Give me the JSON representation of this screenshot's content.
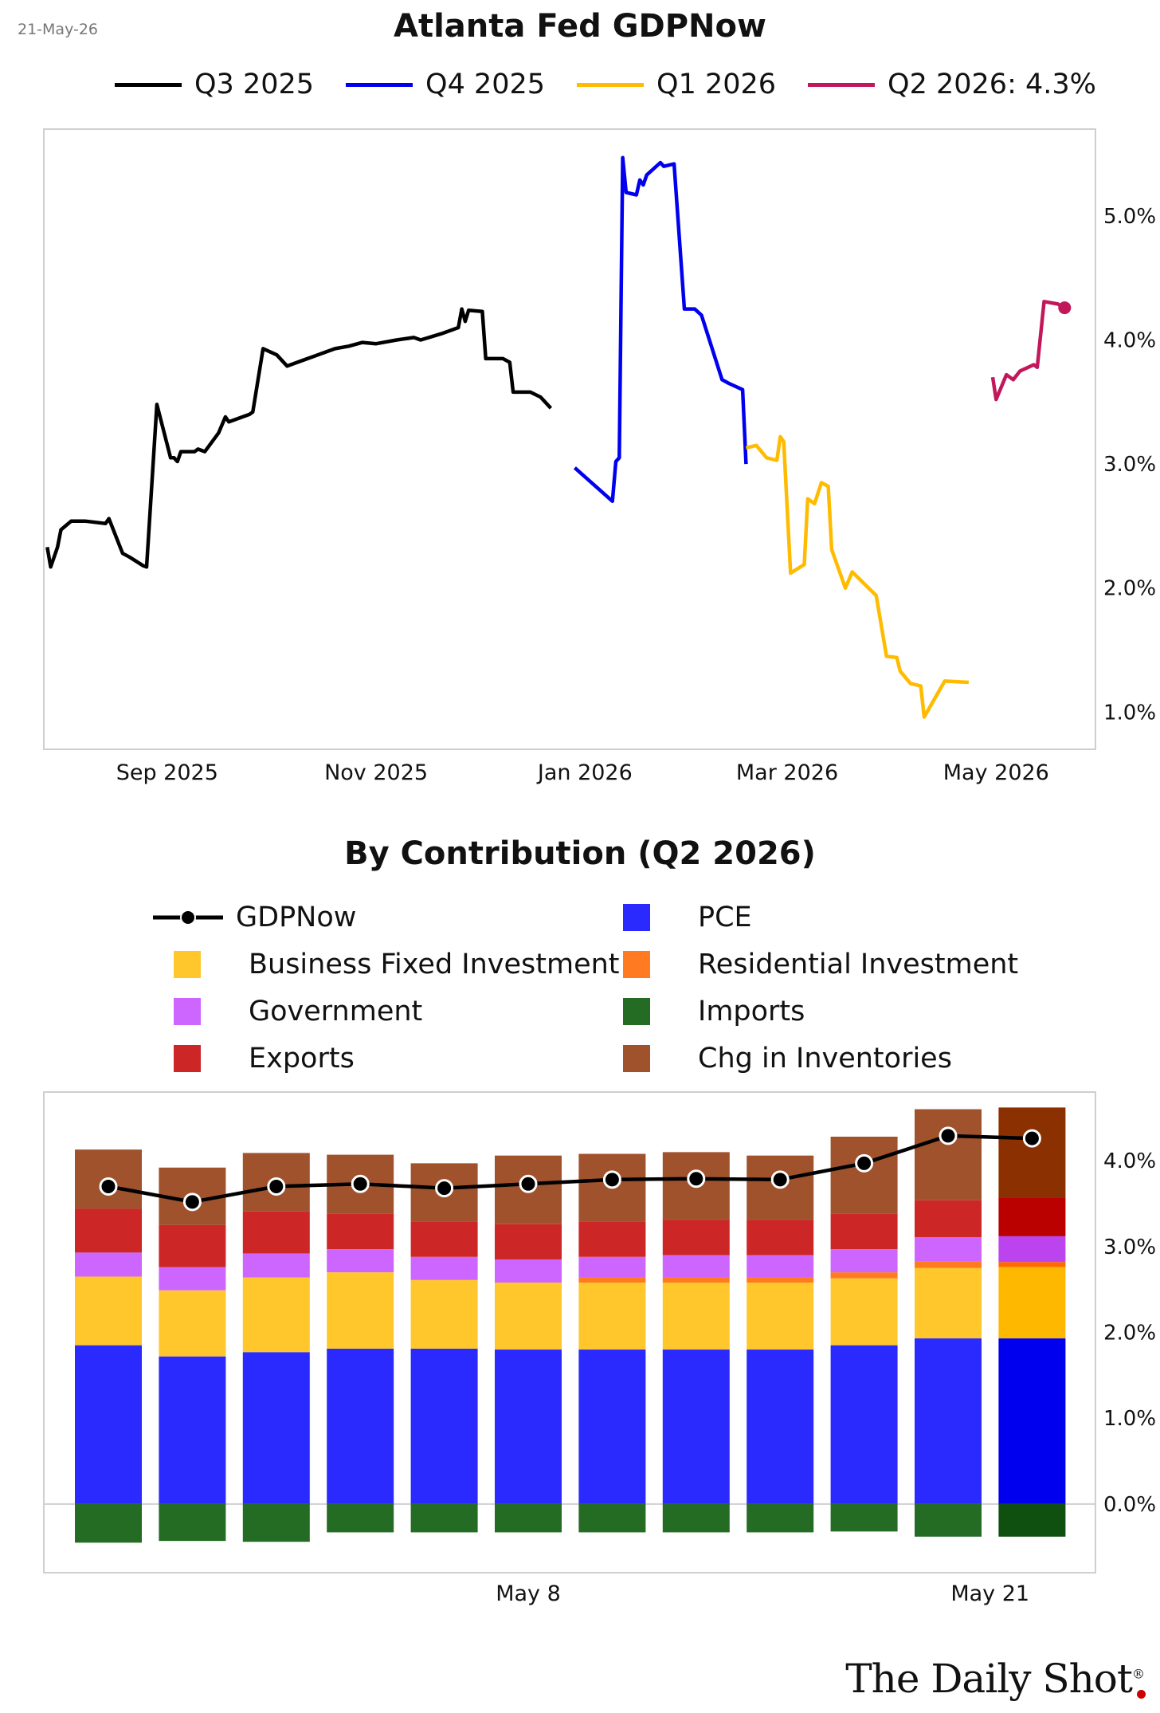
{
  "date_stamp": "21-May-26",
  "chart_data": [
    {
      "type": "line",
      "title": "Atlanta Fed GDPNow",
      "y_axis_side": "right",
      "ylim": [
        0.7,
        5.7
      ],
      "yticks": [
        1.0,
        2.0,
        3.0,
        4.0,
        5.0
      ],
      "ytick_labels": [
        "1.0%",
        "2.0%",
        "3.0%",
        "4.0%",
        "5.0%"
      ],
      "xlim": [
        "2025-07-27",
        "2026-05-30"
      ],
      "xticks": [
        "2025-09-01",
        "2025-11-01",
        "2026-01-01",
        "2026-03-01",
        "2026-05-01"
      ],
      "xtick_labels": [
        "Sep 2025",
        "Nov 2025",
        "Jan 2026",
        "Mar 2026",
        "May 2026"
      ],
      "legend_placement": "top",
      "grid": false,
      "series": [
        {
          "name": "Q3 2025",
          "color": "#000000",
          "points": [
            [
              "2025-07-28",
              2.33
            ],
            [
              "2025-07-29",
              2.17
            ],
            [
              "2025-07-31",
              2.33
            ],
            [
              "2025-08-01",
              2.47
            ],
            [
              "2025-08-04",
              2.54
            ],
            [
              "2025-08-08",
              2.54
            ],
            [
              "2025-08-14",
              2.52
            ],
            [
              "2025-08-15",
              2.56
            ],
            [
              "2025-08-19",
              2.28
            ],
            [
              "2025-08-21",
              2.25
            ],
            [
              "2025-08-25",
              2.18
            ],
            [
              "2025-08-26",
              2.17
            ],
            [
              "2025-08-29",
              3.48
            ],
            [
              "2025-09-02",
              3.05
            ],
            [
              "2025-09-03",
              3.05
            ],
            [
              "2025-09-04",
              3.02
            ],
            [
              "2025-09-05",
              3.1
            ],
            [
              "2025-09-09",
              3.1
            ],
            [
              "2025-09-10",
              3.12
            ],
            [
              "2025-09-12",
              3.1
            ],
            [
              "2025-09-16",
              3.25
            ],
            [
              "2025-09-18",
              3.38
            ],
            [
              "2025-09-19",
              3.34
            ],
            [
              "2025-09-25",
              3.4
            ],
            [
              "2025-09-26",
              3.42
            ],
            [
              "2025-09-29",
              3.93
            ],
            [
              "2025-10-03",
              3.88
            ],
            [
              "2025-10-06",
              3.79
            ],
            [
              "2025-10-14",
              3.87
            ],
            [
              "2025-10-20",
              3.93
            ],
            [
              "2025-10-24",
              3.95
            ],
            [
              "2025-10-28",
              3.98
            ],
            [
              "2025-11-01",
              3.97
            ],
            [
              "2025-11-07",
              4.0
            ],
            [
              "2025-11-12",
              4.02
            ],
            [
              "2025-11-14",
              4.0
            ],
            [
              "2025-11-20",
              4.05
            ],
            [
              "2025-11-25",
              4.1
            ],
            [
              "2025-11-26",
              4.25
            ],
            [
              "2025-11-27",
              4.15
            ],
            [
              "2025-11-28",
              4.24
            ],
            [
              "2025-12-02",
              4.23
            ],
            [
              "2025-12-03",
              3.85
            ],
            [
              "2025-12-08",
              3.85
            ],
            [
              "2025-12-10",
              3.82
            ],
            [
              "2025-12-11",
              3.58
            ],
            [
              "2025-12-16",
              3.58
            ],
            [
              "2025-12-19",
              3.54
            ],
            [
              "2025-12-22",
              3.45
            ]
          ]
        },
        {
          "name": "Q4 2025",
          "color": "#0000ee",
          "points": [
            [
              "2025-12-29",
              2.97
            ],
            [
              "2026-01-09",
              2.7
            ],
            [
              "2026-01-10",
              3.02
            ],
            [
              "2026-01-11",
              3.05
            ],
            [
              "2026-01-12",
              5.47
            ],
            [
              "2026-01-13",
              5.19
            ],
            [
              "2026-01-16",
              5.17
            ],
            [
              "2026-01-17",
              5.29
            ],
            [
              "2026-01-18",
              5.25
            ],
            [
              "2026-01-19",
              5.33
            ],
            [
              "2026-01-23",
              5.43
            ],
            [
              "2026-01-24",
              5.4
            ],
            [
              "2026-01-27",
              5.42
            ],
            [
              "2026-01-30",
              4.25
            ],
            [
              "2026-02-02",
              4.25
            ],
            [
              "2026-02-04",
              4.2
            ],
            [
              "2026-02-10",
              3.68
            ],
            [
              "2026-02-12",
              3.65
            ],
            [
              "2026-02-16",
              3.6
            ],
            [
              "2026-02-17",
              3.0
            ]
          ]
        },
        {
          "name": "Q1 2026",
          "color": "#ffbb00",
          "points": [
            [
              "2026-02-17",
              3.13
            ],
            [
              "2026-02-20",
              3.15
            ],
            [
              "2026-02-23",
              3.05
            ],
            [
              "2026-02-26",
              3.03
            ],
            [
              "2026-02-27",
              3.22
            ],
            [
              "2026-02-28",
              3.18
            ],
            [
              "2026-03-02",
              2.12
            ],
            [
              "2026-03-06",
              2.19
            ],
            [
              "2026-03-07",
              2.72
            ],
            [
              "2026-03-09",
              2.68
            ],
            [
              "2026-03-11",
              2.85
            ],
            [
              "2026-03-13",
              2.82
            ],
            [
              "2026-03-14",
              2.31
            ],
            [
              "2026-03-18",
              2.0
            ],
            [
              "2026-03-20",
              2.13
            ],
            [
              "2026-03-27",
              1.94
            ],
            [
              "2026-03-30",
              1.45
            ],
            [
              "2026-04-02",
              1.44
            ],
            [
              "2026-04-03",
              1.33
            ],
            [
              "2026-04-06",
              1.23
            ],
            [
              "2026-04-09",
              1.21
            ],
            [
              "2026-04-10",
              0.96
            ],
            [
              "2026-04-16",
              1.25
            ],
            [
              "2026-04-23",
              1.24
            ]
          ]
        },
        {
          "name": "Q2 2026",
          "label_value": "4.3%",
          "color": "#c2185b",
          "points": [
            [
              "2026-04-30",
              3.7
            ],
            [
              "2026-05-01",
              3.52
            ],
            [
              "2026-05-04",
              3.72
            ],
            [
              "2026-05-06",
              3.68
            ],
            [
              "2026-05-08",
              3.75
            ],
            [
              "2026-05-12",
              3.8
            ],
            [
              "2026-05-13",
              3.78
            ],
            [
              "2026-05-15",
              4.31
            ],
            [
              "2026-05-19",
              4.29
            ],
            [
              "2026-05-21",
              4.26
            ]
          ]
        }
      ]
    },
    {
      "type": "bar",
      "stacked": true,
      "title": "By Contribution (Q2 2026)",
      "y_axis_side": "right",
      "ylim": [
        -0.8,
        4.8
      ],
      "yticks": [
        0,
        1,
        2,
        3,
        4
      ],
      "ytick_labels": [
        "0.0%",
        "1.0%",
        "2.0%",
        "3.0%",
        "4.0%"
      ],
      "xtick_labels": [
        {
          "index": 5.5,
          "label": "May 8"
        },
        {
          "index": 11,
          "label": "May 21"
        }
      ],
      "grid": false,
      "legend_placement": "top",
      "legend_order": [
        "GDPNow",
        "PCE",
        "Business Fixed Investment",
        "Residential Investment",
        "Government",
        "Imports",
        "Exports",
        "Chg in Inventories"
      ],
      "n_bars": 12,
      "series": [
        {
          "name": "PCE",
          "color": "#2a2aff",
          "values": [
            1.85,
            1.72,
            1.77,
            1.81,
            1.81,
            1.8,
            1.8,
            1.8,
            1.8,
            1.85,
            1.93,
            1.93
          ]
        },
        {
          "name": "Business Fixed Investment",
          "color": "#ffc72c",
          "values": [
            0.8,
            0.77,
            0.87,
            0.89,
            0.8,
            0.78,
            0.78,
            0.78,
            0.78,
            0.78,
            0.82,
            0.83
          ]
        },
        {
          "name": "Residential Investment",
          "color": "#ff7a21",
          "values": [
            0.0,
            0.0,
            0.0,
            0.0,
            0.0,
            0.0,
            0.06,
            0.06,
            0.06,
            0.07,
            0.08,
            0.06
          ]
        },
        {
          "name": "Government",
          "color": "#cc66ff",
          "values": [
            0.28,
            0.27,
            0.28,
            0.27,
            0.27,
            0.27,
            0.24,
            0.26,
            0.26,
            0.27,
            0.28,
            0.3
          ]
        },
        {
          "name": "Exports",
          "color": "#cc2626",
          "values": [
            0.51,
            0.49,
            0.49,
            0.41,
            0.41,
            0.41,
            0.41,
            0.41,
            0.41,
            0.41,
            0.43,
            0.45
          ]
        },
        {
          "name": "Imports",
          "color": "#246b24",
          "values": [
            -0.45,
            -0.43,
            -0.44,
            -0.33,
            -0.33,
            -0.33,
            -0.33,
            -0.33,
            -0.33,
            -0.32,
            -0.38,
            -0.38
          ]
        },
        {
          "name": "Chg in Inventories",
          "color": "#a0522d",
          "values": [
            0.69,
            0.67,
            0.68,
            0.69,
            0.68,
            0.8,
            0.79,
            0.79,
            0.75,
            0.9,
            1.06,
            1.05
          ]
        }
      ],
      "gdpnow": {
        "name": "GDPNow",
        "color": "#000000",
        "values": [
          3.7,
          3.52,
          3.7,
          3.73,
          3.68,
          3.73,
          3.78,
          3.79,
          3.78,
          3.97,
          4.29,
          4.26
        ]
      }
    }
  ],
  "branding": {
    "name": "The Daily Shot",
    "mark": "®"
  }
}
